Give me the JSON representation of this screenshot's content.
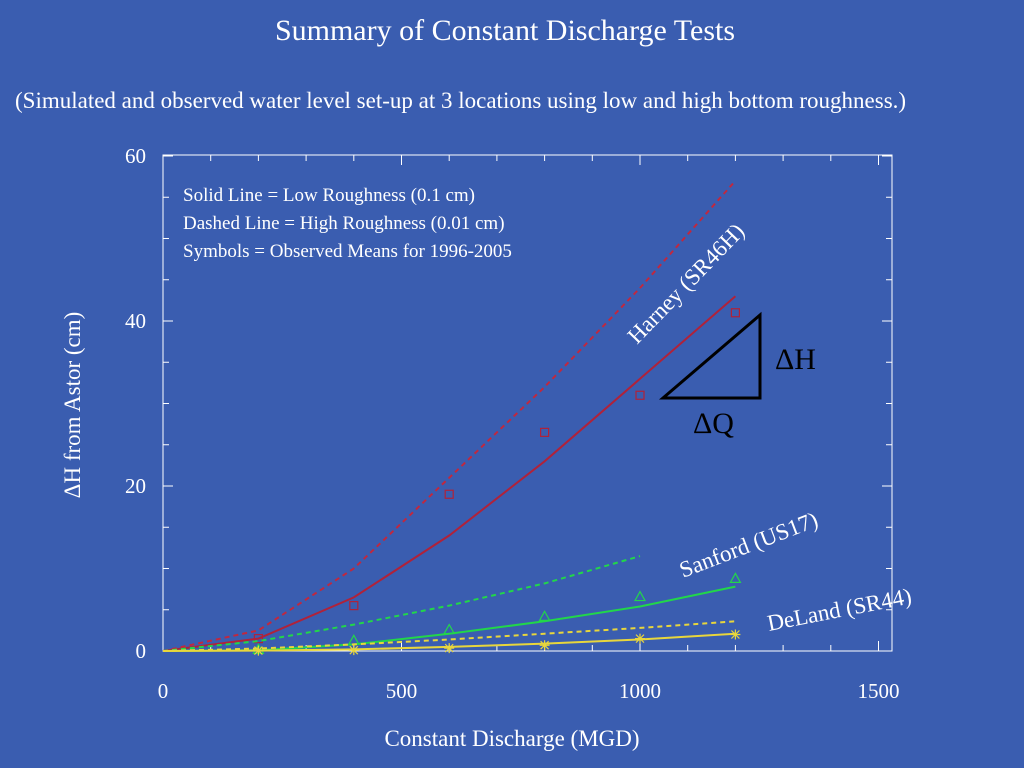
{
  "chart_data": {
    "type": "line",
    "title": "Summary of Constant Discharge Tests",
    "subtitle": "(Simulated and observed water level set-up at 3 locations using low and high bottom roughness.)",
    "xlabel": "Constant Discharge (MGD)",
    "ylabel": "ΔH from Astor (cm)",
    "xlim": [
      0,
      1500
    ],
    "ylim": [
      0,
      60
    ],
    "x_ticks": [
      "0",
      "500",
      "1000",
      "1500"
    ],
    "y_ticks": [
      "0",
      "20",
      "40",
      "60"
    ],
    "notes": [
      "Solid Line = Low Roughness (0.1 cm)",
      "Dashed Line = High Roughness (0.01 cm)",
      "Symbols = Observed Means for 1996-2005"
    ],
    "annotations": {
      "harney": "Harney (SR46H)",
      "sanford": "Sanford (US17)",
      "deland": "DeLand (SR44)",
      "dh": "ΔH",
      "dq": "ΔQ"
    },
    "series": [
      {
        "label": "Harney",
        "roughness": "low",
        "style": "solid",
        "color": "#b0223a",
        "x": [
          0,
          200,
          400,
          600,
          800,
          1000,
          1200
        ],
        "y": [
          0,
          1.5,
          6.5,
          14,
          23,
          33,
          43
        ]
      },
      {
        "label": "Harney",
        "roughness": "high",
        "style": "dashed",
        "color": "#c0283f",
        "x": [
          0,
          200,
          400,
          600,
          800,
          1000,
          1200
        ],
        "y": [
          0,
          2.5,
          10,
          21,
          32,
          44,
          57
        ]
      },
      {
        "label": "Harney",
        "roughness": "observed",
        "style": "square",
        "color": "#b0223a",
        "x": [
          200,
          400,
          600,
          800,
          1000,
          1200
        ],
        "y": [
          1.5,
          5.5,
          19,
          26.5,
          31,
          41
        ]
      },
      {
        "label": "Sanford",
        "roughness": "low",
        "style": "solid",
        "color": "#22d64a",
        "x": [
          0,
          200,
          400,
          600,
          800,
          1000,
          1200
        ],
        "y": [
          0,
          0.1,
          0.8,
          2.1,
          3.6,
          5.4,
          7.8
        ]
      },
      {
        "label": "Sanford",
        "roughness": "high",
        "style": "dashed",
        "color": "#22d64a",
        "x": [
          0,
          200,
          400,
          600,
          800,
          1000
        ],
        "y": [
          0,
          1.2,
          3.2,
          5.5,
          8.2,
          11.5
        ]
      },
      {
        "label": "Sanford",
        "roughness": "observed",
        "style": "triangle",
        "color": "#22d64a",
        "x": [
          200,
          400,
          600,
          800,
          1000,
          1200
        ],
        "y": [
          0.2,
          1.3,
          2.6,
          4.2,
          6.6,
          8.8
        ]
      },
      {
        "label": "DeLand",
        "roughness": "low",
        "style": "solid",
        "color": "#e8d63c",
        "x": [
          0,
          200,
          400,
          600,
          800,
          1000,
          1200
        ],
        "y": [
          0,
          0.05,
          0.2,
          0.5,
          0.9,
          1.4,
          2.1
        ]
      },
      {
        "label": "DeLand",
        "roughness": "high",
        "style": "dashed",
        "color": "#e8d63c",
        "x": [
          0,
          200,
          400,
          600,
          800,
          1000,
          1200
        ],
        "y": [
          0,
          0.3,
          0.8,
          1.4,
          2.1,
          2.8,
          3.6
        ]
      },
      {
        "label": "DeLand",
        "roughness": "observed",
        "style": "star",
        "color": "#e8d63c",
        "x": [
          200,
          400,
          600,
          800,
          1000,
          1200
        ],
        "y": [
          0.05,
          0.1,
          0.35,
          0.7,
          1.5,
          2.0
        ]
      }
    ]
  }
}
